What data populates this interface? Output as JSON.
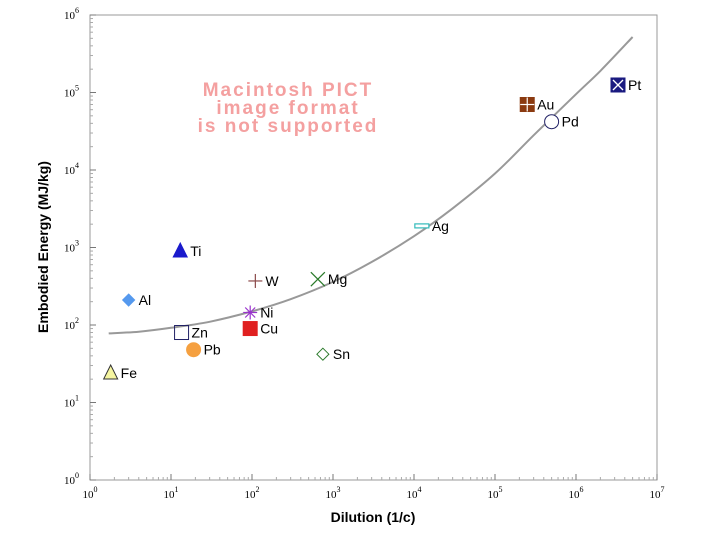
{
  "chart_data": {
    "type": "scatter",
    "xlabel": "Dilution (1/c)",
    "ylabel": "Embodied Energy (MJ/kg)",
    "x_scale": "log",
    "y_scale": "log",
    "xlim": [
      1,
      10000000
    ],
    "ylim": [
      1,
      1000000
    ],
    "x_ticks": [
      1,
      10,
      100,
      1000,
      10000,
      100000,
      1000000,
      10000000
    ],
    "y_ticks": [
      1,
      10,
      100,
      1000,
      10000,
      100000,
      1000000
    ],
    "grid": false,
    "legend": "none",
    "placeholder_text": [
      "Macintosh PICT",
      "image format",
      "is not supported"
    ],
    "points": [
      {
        "label": "Fe",
        "x": 1.8,
        "y": 24,
        "marker": "triangle",
        "fill": "#f5f5a0",
        "stroke": "#333333"
      },
      {
        "label": "Al",
        "x": 3,
        "y": 210,
        "marker": "diamond",
        "fill": "#5599ee",
        "stroke": "#5599ee"
      },
      {
        "label": "Ti",
        "x": 13,
        "y": 900,
        "marker": "triangle",
        "fill": "#1a1acc",
        "stroke": "#1a1acc"
      },
      {
        "label": "Zn",
        "x": 13.5,
        "y": 80,
        "marker": "open-square",
        "fill": "none",
        "stroke": "#222266"
      },
      {
        "label": "Pb",
        "x": 19,
        "y": 48,
        "marker": "circle",
        "fill": "#f5a040",
        "stroke": "#f5a040"
      },
      {
        "label": "W",
        "x": 110,
        "y": 370,
        "marker": "plus",
        "fill": "none",
        "stroke": "#8b4a4a"
      },
      {
        "label": "Ni",
        "x": 95,
        "y": 145,
        "marker": "asterisk",
        "fill": "none",
        "stroke": "#9933cc"
      },
      {
        "label": "Cu",
        "x": 95,
        "y": 90,
        "marker": "square",
        "fill": "#e02020",
        "stroke": "#e02020"
      },
      {
        "label": "Mg",
        "x": 650,
        "y": 390,
        "marker": "x",
        "fill": "none",
        "stroke": "#2a7a2a"
      },
      {
        "label": "Sn",
        "x": 750,
        "y": 42,
        "marker": "open-diamond",
        "fill": "none",
        "stroke": "#2a7a2a"
      },
      {
        "label": "Ag",
        "x": 12500,
        "y": 1900,
        "marker": "bar",
        "fill": "#ffffff",
        "stroke": "#33bbbb"
      },
      {
        "label": "Au",
        "x": 250000,
        "y": 70000,
        "marker": "grid-square",
        "fill": "#8b3a10",
        "stroke": "#8b3a10"
      },
      {
        "label": "Pd",
        "x": 500000,
        "y": 42000,
        "marker": "open-circle",
        "fill": "none",
        "stroke": "#222266"
      },
      {
        "label": "Pt",
        "x": 3300000,
        "y": 125000,
        "marker": "boxed-x",
        "fill": "#1a1a80",
        "stroke": "#1a1a80"
      }
    ],
    "trend_line": {
      "x": [
        1.7,
        4,
        10,
        30,
        100,
        300,
        1000,
        3000,
        10000,
        30000,
        100000,
        300000,
        1000000,
        2000000,
        5000000
      ],
      "y": [
        78,
        82,
        92,
        110,
        150,
        215,
        360,
        650,
        1400,
        3200,
        9000,
        28000,
        95000,
        190000,
        520000
      ],
      "color": "#999999"
    }
  }
}
